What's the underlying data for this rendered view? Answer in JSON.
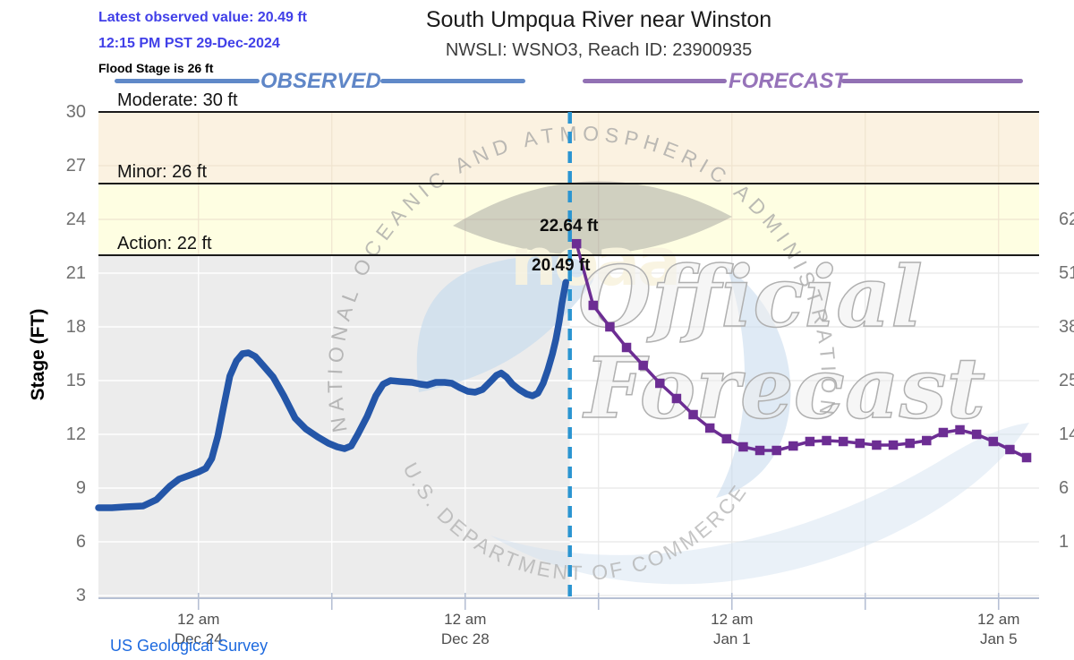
{
  "page": {
    "latest_observed": "Latest observed value: 20.49 ft",
    "datetime": "12:15 PM PST 29-Dec-2024",
    "flood_stage_note": "Flood Stage is 26 ft",
    "title": "South Umpqua River near Winston",
    "subtitle": "NWSLI: WSNO3, Reach ID: 23900935",
    "source_link": "US Geological Survey"
  },
  "legend": {
    "observed": "OBSERVED",
    "forecast": "FORECAST"
  },
  "y_axis": {
    "label": "Stage (FT)",
    "ticks": [
      3,
      6,
      9,
      12,
      15,
      18,
      21,
      24,
      27,
      30
    ]
  },
  "right_axis": {
    "labels": [
      {
        "stage": 24,
        "flow": "62"
      },
      {
        "stage": 21,
        "flow": "51"
      },
      {
        "stage": 18,
        "flow": "38"
      },
      {
        "stage": 15,
        "flow": "25"
      },
      {
        "stage": 12,
        "flow": "14"
      },
      {
        "stage": 9,
        "flow": "6"
      },
      {
        "stage": 6,
        "flow": "1"
      }
    ]
  },
  "x_axis": {
    "major": [
      {
        "t": 1.5,
        "time": "12 am",
        "date": "Dec 24"
      },
      {
        "t": 5.5,
        "time": "12 am",
        "date": "Dec 28"
      },
      {
        "t": 9.5,
        "time": "12 am",
        "date": "Jan 1"
      },
      {
        "t": 13.5,
        "time": "12 am",
        "date": "Jan 5"
      }
    ],
    "minor_t": [
      3.5,
      7.5,
      11.5
    ]
  },
  "flood": {
    "moderate": {
      "label": "Moderate: 30 ft",
      "stage": 30
    },
    "minor": {
      "label": "Minor: 26 ft",
      "stage": 26
    },
    "action": {
      "label": "Action: 22 ft",
      "stage": 22
    }
  },
  "annotations": {
    "forecast_crest": "22.64 ft",
    "latest_observed": "20.49 ft"
  },
  "watermark": {
    "arc_top": "NATIONAL OCEANIC AND ATMOSPHERIC ADMINISTRATION",
    "arc_bottom": "U.S. DEPARTMENT OF COMMERCE",
    "noaa": "noaa",
    "big1": "Official",
    "big2": "Forecast"
  },
  "colors": {
    "observed_line": "#2456A8",
    "forecast_line": "#6C2D93",
    "now_line": "#2B95D1",
    "band_26_30": "#FBF2E1",
    "band_22_26": "#FEFEE2",
    "observed_bg": "#ECECEC",
    "flood_line": "#1A1A1A",
    "axis": "#B6C0D4",
    "annotation_blue": "#4140E8",
    "legend_blue": "#6089C8",
    "legend_purple": "#9271B4"
  },
  "chart_data": {
    "type": "line",
    "title": "South Umpqua River near Winston",
    "ylabel": "Stage (FT)",
    "ylim": [
      2.85,
      30
    ],
    "x_unit": "days since 22-Dec-2024 12:00 PST",
    "xlim": [
      0,
      14.11
    ],
    "now_t": 7.07,
    "flood_stages": {
      "action": 22,
      "minor": 26,
      "moderate": 30
    },
    "series": [
      {
        "name": "observed",
        "points": [
          [
            0,
            7.9
          ],
          [
            0.2,
            7.9
          ],
          [
            0.4,
            7.95
          ],
          [
            0.67,
            8.0
          ],
          [
            0.87,
            8.35
          ],
          [
            1.07,
            9.1
          ],
          [
            1.21,
            9.5
          ],
          [
            1.37,
            9.72
          ],
          [
            1.5,
            9.9
          ],
          [
            1.61,
            10.1
          ],
          [
            1.7,
            10.65
          ],
          [
            1.79,
            11.9
          ],
          [
            1.88,
            13.6
          ],
          [
            1.97,
            15.25
          ],
          [
            2.07,
            16.1
          ],
          [
            2.16,
            16.5
          ],
          [
            2.25,
            16.55
          ],
          [
            2.35,
            16.35
          ],
          [
            2.48,
            15.8
          ],
          [
            2.62,
            15.2
          ],
          [
            2.78,
            14.15
          ],
          [
            2.95,
            12.9
          ],
          [
            3.11,
            12.3
          ],
          [
            3.29,
            11.85
          ],
          [
            3.45,
            11.5
          ],
          [
            3.58,
            11.3
          ],
          [
            3.69,
            11.2
          ],
          [
            3.79,
            11.35
          ],
          [
            3.89,
            12.0
          ],
          [
            4.03,
            13.0
          ],
          [
            4.16,
            14.15
          ],
          [
            4.27,
            14.8
          ],
          [
            4.38,
            15.0
          ],
          [
            4.52,
            14.95
          ],
          [
            4.7,
            14.9
          ],
          [
            4.83,
            14.8
          ],
          [
            4.93,
            14.75
          ],
          [
            5.06,
            14.9
          ],
          [
            5.19,
            14.9
          ],
          [
            5.3,
            14.85
          ],
          [
            5.42,
            14.6
          ],
          [
            5.54,
            14.4
          ],
          [
            5.65,
            14.35
          ],
          [
            5.76,
            14.5
          ],
          [
            5.88,
            14.95
          ],
          [
            5.97,
            15.3
          ],
          [
            6.04,
            15.42
          ],
          [
            6.12,
            15.2
          ],
          [
            6.21,
            14.8
          ],
          [
            6.31,
            14.5
          ],
          [
            6.42,
            14.25
          ],
          [
            6.51,
            14.15
          ],
          [
            6.59,
            14.3
          ],
          [
            6.67,
            14.85
          ],
          [
            6.74,
            15.6
          ],
          [
            6.81,
            16.5
          ],
          [
            6.86,
            17.3
          ],
          [
            6.91,
            18.3
          ],
          [
            6.95,
            19.3
          ],
          [
            6.98,
            19.9
          ],
          [
            7.01,
            20.49
          ]
        ],
        "last_value_ft": 20.49
      },
      {
        "name": "forecast",
        "marker": "square",
        "start_t": 7.17,
        "interval_days": 0.25,
        "values": [
          22.64,
          19.2,
          18.0,
          16.85,
          15.85,
          14.85,
          14.0,
          13.1,
          12.35,
          11.75,
          11.3,
          11.1,
          11.1,
          11.35,
          11.6,
          11.65,
          11.6,
          11.5,
          11.4,
          11.4,
          11.5,
          11.65,
          12.1,
          12.25,
          12.0,
          11.6,
          11.15,
          10.7
        ],
        "crest_value_ft": 22.64
      }
    ]
  }
}
